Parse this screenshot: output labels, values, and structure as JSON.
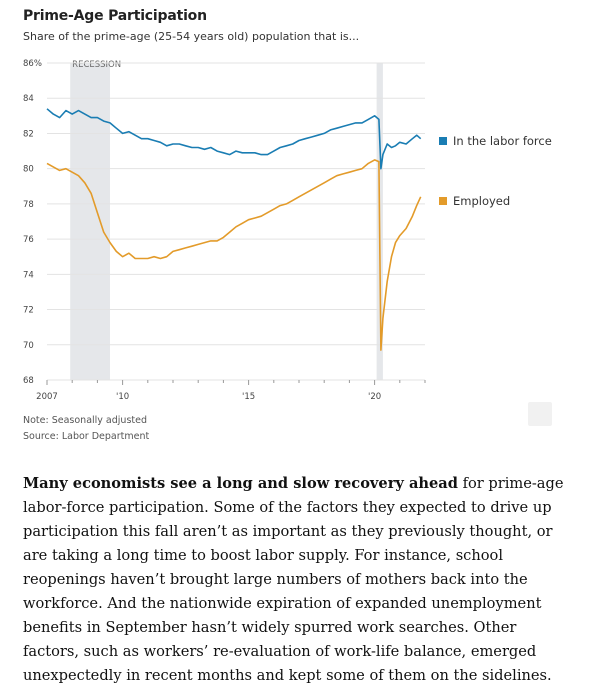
{
  "chart_data": {
    "type": "line",
    "title": "Prime-Age Participation",
    "subtitle": "Share of the prime-age (25-54 years old) population that is...",
    "ylim": [
      68,
      86
    ],
    "y_ticks": [
      "86%",
      "84",
      "82",
      "80",
      "78",
      "76",
      "74",
      "72",
      "70",
      "68"
    ],
    "xlim": [
      2007.0,
      2022.0
    ],
    "x_ticks": [
      {
        "value": 2007.0,
        "label": "2007"
      },
      {
        "value": 2010.0,
        "label": "'10"
      },
      {
        "value": 2015.0,
        "label": "'15"
      },
      {
        "value": 2020.0,
        "label": "'20"
      }
    ],
    "shaded_regions": [
      {
        "label": "RECESSION",
        "start": 2007.92,
        "end": 2009.5
      },
      {
        "label": "",
        "start": 2020.08,
        "end": 2020.33
      }
    ],
    "legend_placement": "right",
    "grid": true,
    "series": [
      {
        "name": "In the labor force",
        "color": "#1a7db3",
        "points": [
          [
            2007.0,
            83.4
          ],
          [
            2007.25,
            83.1
          ],
          [
            2007.5,
            82.9
          ],
          [
            2007.75,
            83.3
          ],
          [
            2008.0,
            83.1
          ],
          [
            2008.25,
            83.3
          ],
          [
            2008.5,
            83.1
          ],
          [
            2008.75,
            82.9
          ],
          [
            2009.0,
            82.9
          ],
          [
            2009.25,
            82.7
          ],
          [
            2009.5,
            82.6
          ],
          [
            2009.75,
            82.3
          ],
          [
            2010.0,
            82.0
          ],
          [
            2010.25,
            82.1
          ],
          [
            2010.5,
            81.9
          ],
          [
            2010.75,
            81.7
          ],
          [
            2011.0,
            81.7
          ],
          [
            2011.25,
            81.6
          ],
          [
            2011.5,
            81.5
          ],
          [
            2011.75,
            81.3
          ],
          [
            2012.0,
            81.4
          ],
          [
            2012.25,
            81.4
          ],
          [
            2012.5,
            81.3
          ],
          [
            2012.75,
            81.2
          ],
          [
            2013.0,
            81.2
          ],
          [
            2013.25,
            81.1
          ],
          [
            2013.5,
            81.2
          ],
          [
            2013.75,
            81.0
          ],
          [
            2014.0,
            80.9
          ],
          [
            2014.25,
            80.8
          ],
          [
            2014.5,
            81.0
          ],
          [
            2014.75,
            80.9
          ],
          [
            2015.0,
            80.9
          ],
          [
            2015.25,
            80.9
          ],
          [
            2015.5,
            80.8
          ],
          [
            2015.75,
            80.8
          ],
          [
            2016.0,
            81.0
          ],
          [
            2016.25,
            81.2
          ],
          [
            2016.5,
            81.3
          ],
          [
            2016.75,
            81.4
          ],
          [
            2017.0,
            81.6
          ],
          [
            2017.25,
            81.7
          ],
          [
            2017.5,
            81.8
          ],
          [
            2017.75,
            81.9
          ],
          [
            2018.0,
            82.0
          ],
          [
            2018.25,
            82.2
          ],
          [
            2018.5,
            82.3
          ],
          [
            2018.75,
            82.4
          ],
          [
            2019.0,
            82.5
          ],
          [
            2019.25,
            82.6
          ],
          [
            2019.5,
            82.6
          ],
          [
            2019.75,
            82.8
          ],
          [
            2020.0,
            83.0
          ],
          [
            2020.17,
            82.8
          ],
          [
            2020.25,
            80.0
          ],
          [
            2020.33,
            80.8
          ],
          [
            2020.5,
            81.4
          ],
          [
            2020.67,
            81.2
          ],
          [
            2020.83,
            81.3
          ],
          [
            2021.0,
            81.5
          ],
          [
            2021.25,
            81.4
          ],
          [
            2021.5,
            81.7
          ],
          [
            2021.67,
            81.9
          ],
          [
            2021.83,
            81.7
          ]
        ]
      },
      {
        "name": "Employed",
        "color": "#e39b2a",
        "points": [
          [
            2007.0,
            80.3
          ],
          [
            2007.25,
            80.1
          ],
          [
            2007.5,
            79.9
          ],
          [
            2007.75,
            80.0
          ],
          [
            2008.0,
            79.8
          ],
          [
            2008.25,
            79.6
          ],
          [
            2008.5,
            79.2
          ],
          [
            2008.75,
            78.6
          ],
          [
            2009.0,
            77.5
          ],
          [
            2009.25,
            76.4
          ],
          [
            2009.5,
            75.8
          ],
          [
            2009.75,
            75.3
          ],
          [
            2010.0,
            75.0
          ],
          [
            2010.25,
            75.2
          ],
          [
            2010.5,
            74.9
          ],
          [
            2010.75,
            74.9
          ],
          [
            2011.0,
            74.9
          ],
          [
            2011.25,
            75.0
          ],
          [
            2011.5,
            74.9
          ],
          [
            2011.75,
            75.0
          ],
          [
            2012.0,
            75.3
          ],
          [
            2012.25,
            75.4
          ],
          [
            2012.5,
            75.5
          ],
          [
            2012.75,
            75.6
          ],
          [
            2013.0,
            75.7
          ],
          [
            2013.25,
            75.8
          ],
          [
            2013.5,
            75.9
          ],
          [
            2013.75,
            75.9
          ],
          [
            2014.0,
            76.1
          ],
          [
            2014.25,
            76.4
          ],
          [
            2014.5,
            76.7
          ],
          [
            2014.75,
            76.9
          ],
          [
            2015.0,
            77.1
          ],
          [
            2015.25,
            77.2
          ],
          [
            2015.5,
            77.3
          ],
          [
            2015.75,
            77.5
          ],
          [
            2016.0,
            77.7
          ],
          [
            2016.25,
            77.9
          ],
          [
            2016.5,
            78.0
          ],
          [
            2016.75,
            78.2
          ],
          [
            2017.0,
            78.4
          ],
          [
            2017.25,
            78.6
          ],
          [
            2017.5,
            78.8
          ],
          [
            2017.75,
            79.0
          ],
          [
            2018.0,
            79.2
          ],
          [
            2018.25,
            79.4
          ],
          [
            2018.5,
            79.6
          ],
          [
            2018.75,
            79.7
          ],
          [
            2019.0,
            79.8
          ],
          [
            2019.25,
            79.9
          ],
          [
            2019.5,
            80.0
          ],
          [
            2019.75,
            80.3
          ],
          [
            2020.0,
            80.5
          ],
          [
            2020.17,
            80.4
          ],
          [
            2020.25,
            69.7
          ],
          [
            2020.33,
            71.5
          ],
          [
            2020.5,
            73.6
          ],
          [
            2020.67,
            75.0
          ],
          [
            2020.83,
            75.8
          ],
          [
            2021.0,
            76.2
          ],
          [
            2021.25,
            76.6
          ],
          [
            2021.5,
            77.3
          ],
          [
            2021.67,
            77.9
          ],
          [
            2021.83,
            78.4
          ]
        ]
      }
    ]
  },
  "note": "Note: Seasonally adjusted",
  "source": "Source: Labor Department",
  "article": {
    "lead_bold": "Many economists see a long and slow recovery ahead",
    "text": " for prime-age labor-force participation. Some of the factors they expected to drive up participation this fall aren’t as important as they previously thought, or are taking a long time to boost labor supply. For instance, school reopenings haven’t brought large numbers of mothers back into the workforce. And the nationwide expiration of expanded unemployment benefits in September hasn’t widely spurred work searches. Other factors, such as workers’ re-evaluation of work-life balance, emerged unexpectedly in recent months and kept some of them on the sidelines."
  }
}
